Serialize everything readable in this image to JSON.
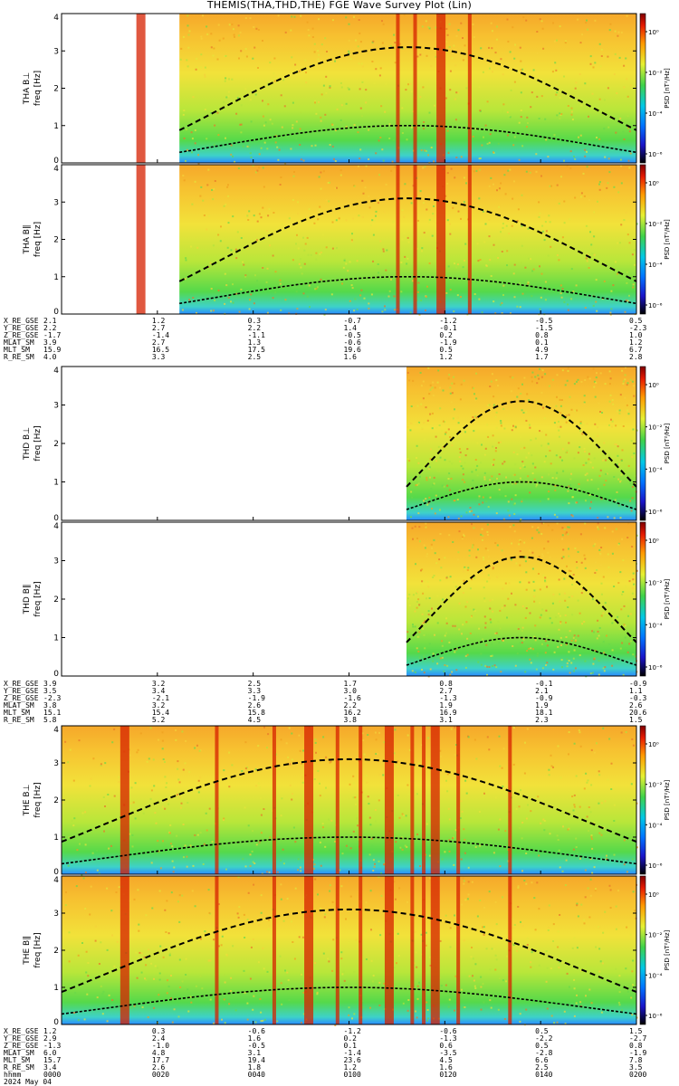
{
  "title": "THEMIS(THA,THD,THE) FGE Wave Survey Plot (Lin)",
  "colorbar": {
    "label": "PSD [nT²/Hz]",
    "ticks": [
      "10⁰",
      "10⁻²",
      "10⁻⁴",
      "10⁻⁶"
    ]
  },
  "chart_data": [
    {
      "type": "heatmap",
      "probe": "THA",
      "panels": [
        {
          "ylabel": "THA B⊥",
          "unit_label": "freq [Hz]",
          "ylim": [
            0,
            4
          ],
          "yticks": [
            "0",
            "1",
            "2",
            "3",
            "4"
          ],
          "data_start_fraction": 0.205,
          "red_bands_fraction": [
            0.138,
            0.585,
            0.615,
            0.66,
            0.71
          ]
        },
        {
          "ylabel": "THA B∥",
          "unit_label": "freq [Hz]",
          "ylim": [
            0,
            4
          ],
          "yticks": [
            "0",
            "1",
            "2",
            "3",
            "4"
          ],
          "data_start_fraction": 0.205,
          "red_bands_fraction": [
            0.138,
            0.585,
            0.615,
            0.66,
            0.71
          ]
        }
      ],
      "ephemeris": {
        "labels": [
          "X_RE_GSE",
          "Y_RE_GSE",
          "Z_RE_GSE",
          "MLAT_SM",
          "MLT_SM",
          "R_RE_SM"
        ],
        "columns": [
          [
            "2.1",
            "2.2",
            "-1.7",
            "3.9",
            "15.9",
            "4.0"
          ],
          [
            "1.2",
            "2.7",
            "-1.4",
            "2.7",
            "16.5",
            "3.3"
          ],
          [
            "0.3",
            "2.2",
            "-1.1",
            "1.3",
            "17.5",
            "2.5"
          ],
          [
            "-0.7",
            "1.4",
            "-0.5",
            "-0.6",
            "19.6",
            "1.6"
          ],
          [
            "-1.2",
            "-0.1",
            "0.2",
            "-1.9",
            "0.5",
            "1.2"
          ],
          [
            "-0.5",
            "-1.5",
            "0.8",
            "0.1",
            "4.9",
            "1.7"
          ],
          [
            "0.5",
            "-2.3",
            "1.0",
            "1.2",
            "6.7",
            "2.8"
          ]
        ]
      }
    },
    {
      "type": "heatmap",
      "probe": "THD",
      "panels": [
        {
          "ylabel": "THD B⊥",
          "unit_label": "freq [Hz]",
          "ylim": [
            0,
            4
          ],
          "yticks": [
            "0",
            "1",
            "2",
            "3",
            "4"
          ],
          "data_start_fraction": 0.6,
          "red_bands_fraction": []
        },
        {
          "ylabel": "THD B∥",
          "unit_label": "freq [Hz]",
          "ylim": [
            0,
            4
          ],
          "yticks": [
            "0",
            "1",
            "2",
            "3",
            "4"
          ],
          "data_start_fraction": 0.6,
          "red_bands_fraction": []
        }
      ],
      "ephemeris": {
        "labels": [
          "X_RE_GSE",
          "Y_RE_GSE",
          "Z_RE_GSE",
          "MLAT_SM",
          "MLT_SM",
          "R_RE_SM"
        ],
        "columns": [
          [
            "3.9",
            "3.5",
            "-2.3",
            "3.8",
            "15.1",
            "5.8"
          ],
          [
            "3.2",
            "3.4",
            "-2.1",
            "3.2",
            "15.4",
            "5.2"
          ],
          [
            "2.5",
            "3.3",
            "-1.9",
            "2.6",
            "15.8",
            "4.5"
          ],
          [
            "1.7",
            "3.0",
            "-1.6",
            "2.2",
            "16.2",
            "3.8"
          ],
          [
            "0.8",
            "2.7",
            "-1.3",
            "1.9",
            "16.9",
            "3.1"
          ],
          [
            "-0.1",
            "2.1",
            "-0.9",
            "1.9",
            "18.1",
            "2.3"
          ],
          [
            "-0.9",
            "1.1",
            "-0.3",
            "2.6",
            "20.6",
            "1.5"
          ]
        ]
      }
    },
    {
      "type": "heatmap",
      "probe": "THE",
      "panels": [
        {
          "ylabel": "THE B⊥",
          "unit_label": "freq [Hz]",
          "ylim": [
            0,
            4
          ],
          "yticks": [
            "0",
            "1",
            "2",
            "3",
            "4"
          ],
          "data_start_fraction": 0.0,
          "red_bands_fraction": [
            0.11,
            0.27,
            0.37,
            0.43,
            0.48,
            0.52,
            0.57,
            0.61,
            0.63,
            0.65,
            0.69,
            0.78
          ]
        },
        {
          "ylabel": "THE B∥",
          "unit_label": "freq [Hz]",
          "ylim": [
            0,
            4
          ],
          "yticks": [
            "0",
            "1",
            "2",
            "3",
            "4"
          ],
          "data_start_fraction": 0.0,
          "red_bands_fraction": [
            0.11,
            0.27,
            0.37,
            0.43,
            0.48,
            0.52,
            0.57,
            0.61,
            0.63,
            0.65,
            0.69,
            0.78
          ]
        }
      ],
      "ephemeris": {
        "labels": [
          "X_RE_GSE",
          "Y_RE_GSE",
          "Z_RE_GSE",
          "MLAT_SM",
          "MLT_SM",
          "R_RE_SM",
          "hhmm",
          "2024 May 04"
        ],
        "columns": [
          [
            "1.2",
            "2.9",
            "-1.3",
            "6.0",
            "15.7",
            "3.4",
            "0000"
          ],
          [
            "0.3",
            "2.4",
            "-1.0",
            "4.8",
            "17.7",
            "2.6",
            "0020"
          ],
          [
            "-0.6",
            "1.6",
            "-0.5",
            "3.1",
            "19.4",
            "1.8",
            "0040"
          ],
          [
            "-1.2",
            "0.2",
            "0.1",
            "-1.4",
            "23.6",
            "1.2",
            "0100"
          ],
          [
            "-0.6",
            "-1.3",
            "0.6",
            "-3.5",
            "4.5",
            "1.6",
            "0120"
          ],
          [
            "0.5",
            "-2.2",
            "0.5",
            "-2.8",
            "6.6",
            "2.5",
            "0140"
          ],
          [
            "1.5",
            "-2.7",
            "0.8",
            "-1.9",
            "7.8",
            "3.5",
            "0200"
          ]
        ]
      }
    }
  ]
}
